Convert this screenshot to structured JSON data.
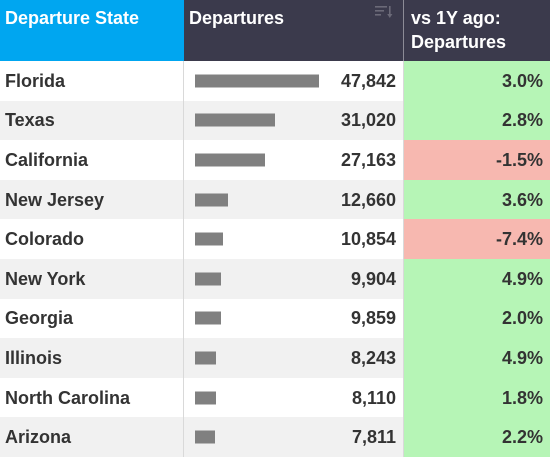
{
  "colors": {
    "state_header_bg": "#00a6f0",
    "dark_header_bg": "#3b3a4c",
    "bar": "#808080",
    "positive_bg": "#b6f5b6",
    "negative_bg": "#f7b8b0",
    "alt_row_bg": "#f1f1f1"
  },
  "headers": {
    "state": "Departure State",
    "departures": "Departures",
    "vs_line1": "vs 1Y ago:",
    "vs_line2": "Departures",
    "sort_icon": "sort-icon"
  },
  "chart_data": {
    "type": "table",
    "columns": [
      "Departure State",
      "Departures",
      "vs 1Y ago: Departures"
    ],
    "categories": [
      "Florida",
      "Texas",
      "California",
      "New Jersey",
      "Colorado",
      "New York",
      "Georgia",
      "Illinois",
      "North Carolina",
      "Arizona"
    ],
    "values": [
      47842,
      31020,
      27163,
      12660,
      10854,
      9904,
      9859,
      8243,
      8110,
      7811
    ],
    "change_pct": [
      3.0,
      2.8,
      -1.5,
      3.6,
      -7.4,
      4.9,
      2.0,
      4.9,
      1.8,
      2.2
    ],
    "rows": [
      {
        "state": "Florida",
        "departures": "47,842",
        "change": "3.0%"
      },
      {
        "state": "Texas",
        "departures": "31,020",
        "change": "2.8%"
      },
      {
        "state": "California",
        "departures": "27,163",
        "change": "-1.5%"
      },
      {
        "state": "New Jersey",
        "departures": "12,660",
        "change": "3.6%"
      },
      {
        "state": "Colorado",
        "departures": "10,854",
        "change": "-7.4%"
      },
      {
        "state": "New York",
        "departures": "9,904",
        "change": "4.9%"
      },
      {
        "state": "Georgia",
        "departures": "9,859",
        "change": "2.0%"
      },
      {
        "state": "Illinois",
        "departures": "8,243",
        "change": "4.9%"
      },
      {
        "state": "North Carolina",
        "departures": "8,110",
        "change": "1.8%"
      },
      {
        "state": "Arizona",
        "departures": "7,811",
        "change": "2.2%"
      }
    ]
  }
}
